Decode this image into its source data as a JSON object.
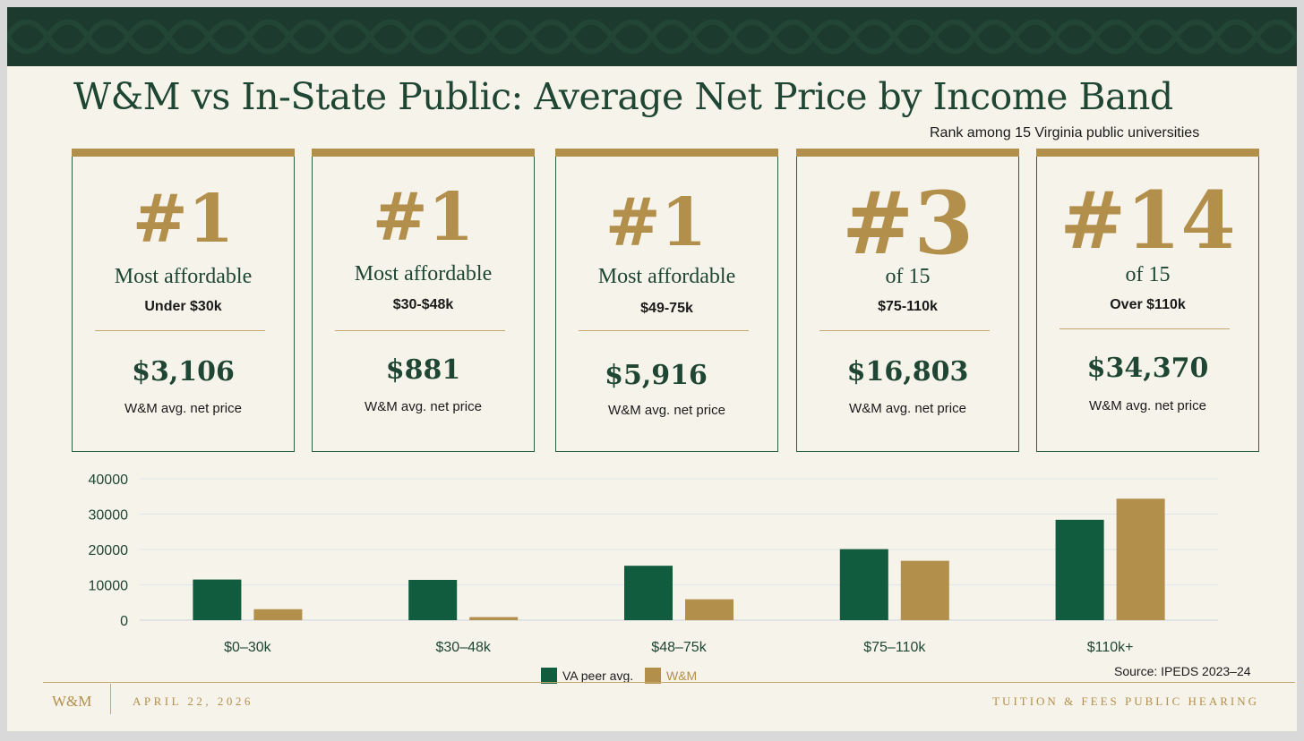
{
  "title": "W&M vs In-State Public: Average Net Price by Income Band",
  "rank_note": "Rank among 15 Virginia public universities",
  "cards": [
    {
      "rank": "#1",
      "label": "Most affordable",
      "band": "Under $30k",
      "price": "$3,106",
      "price_label": "W&M avg. net price"
    },
    {
      "rank": "#1",
      "label": "Most affordable",
      "band": "$30-$48k",
      "price": "$881",
      "price_label": "W&M avg. net price"
    },
    {
      "rank": "#1",
      "label": "Most affordable",
      "band": "$49-75k",
      "price": "$5,916",
      "price_label": "W&M avg. net price"
    },
    {
      "rank": "#3",
      "label": "of 15",
      "band": "$75-110k",
      "price": "$16,803",
      "price_label": "W&M avg. net price"
    },
    {
      "rank": "#14",
      "label": "of 15",
      "band": "Over $110k",
      "price": "$34,370",
      "price_label": "W&M avg. net price"
    }
  ],
  "chart_data": {
    "type": "bar",
    "categories": [
      "$0–30k",
      "$30–48k",
      "$48–75k",
      "$75–110k",
      "$110k+"
    ],
    "series": [
      {
        "name": "VA peer avg.",
        "values": [
          11500,
          11400,
          15400,
          20100,
          28400
        ],
        "color": "#115c3e"
      },
      {
        "name": "W&M",
        "values": [
          3106,
          881,
          5916,
          16803,
          34370
        ],
        "color": "#b38f4c"
      }
    ],
    "ylim": [
      0,
      40000
    ],
    "yticks": [
      "0",
      "10000",
      "20000",
      "30000",
      "40000"
    ],
    "grid": true,
    "legend": "bottom-center"
  },
  "source": "Source: IPEDS 2023–24",
  "footer": {
    "logo": "W&M",
    "date": "APRIL 22, 2026",
    "event": "TUITION & FEES PUBLIC HEARING"
  },
  "colors": {
    "green": "#1e4632",
    "gold": "#b38f4c",
    "band": "#1c3a2e"
  }
}
